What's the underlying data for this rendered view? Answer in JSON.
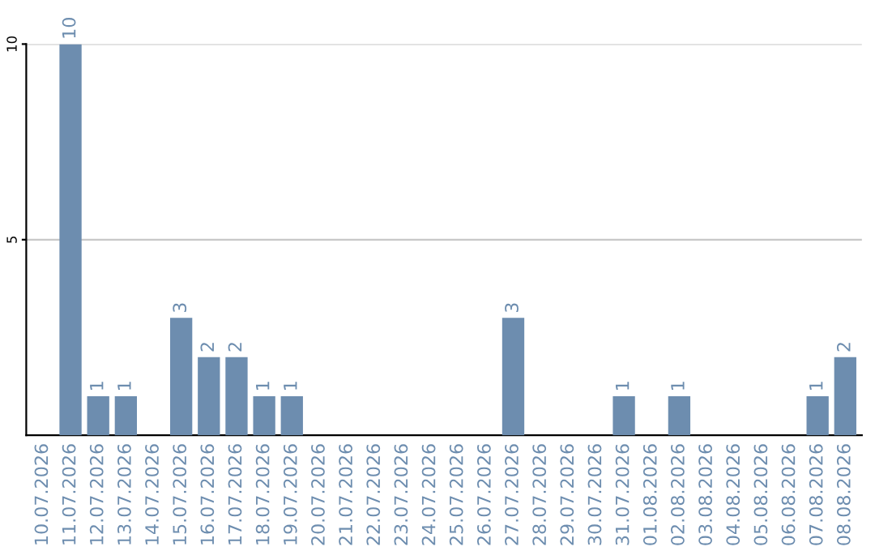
{
  "chart_data": {
    "type": "bar",
    "categories": [
      "10.07.2026",
      "11.07.2026",
      "12.07.2026",
      "13.07.2026",
      "14.07.2026",
      "15.07.2026",
      "16.07.2026",
      "17.07.2026",
      "18.07.2026",
      "19.07.2026",
      "20.07.2026",
      "21.07.2026",
      "22.07.2026",
      "23.07.2026",
      "24.07.2026",
      "25.07.2026",
      "26.07.2026",
      "27.07.2026",
      "28.07.2026",
      "29.07.2026",
      "30.07.2026",
      "31.07.2026",
      "01.08.2026",
      "02.08.2026",
      "03.08.2026",
      "04.08.2026",
      "05.08.2026",
      "06.08.2026",
      "07.08.2026",
      "08.08.2026"
    ],
    "values": [
      0,
      10,
      1,
      1,
      0,
      3,
      2,
      2,
      1,
      1,
      0,
      0,
      0,
      0,
      0,
      0,
      0,
      3,
      0,
      0,
      0,
      1,
      0,
      1,
      0,
      0,
      0,
      0,
      1,
      2
    ],
    "value_labels": [
      null,
      "10",
      "1",
      "1",
      null,
      "3",
      "2",
      "2",
      "1",
      "1",
      null,
      null,
      null,
      null,
      null,
      null,
      null,
      "3",
      null,
      null,
      null,
      "1",
      null,
      "1",
      null,
      null,
      null,
      null,
      "1",
      "2"
    ],
    "color": "#6d8daf",
    "ylim": [
      0,
      10
    ],
    "yticks": [
      5,
      10
    ],
    "grid": "y"
  }
}
